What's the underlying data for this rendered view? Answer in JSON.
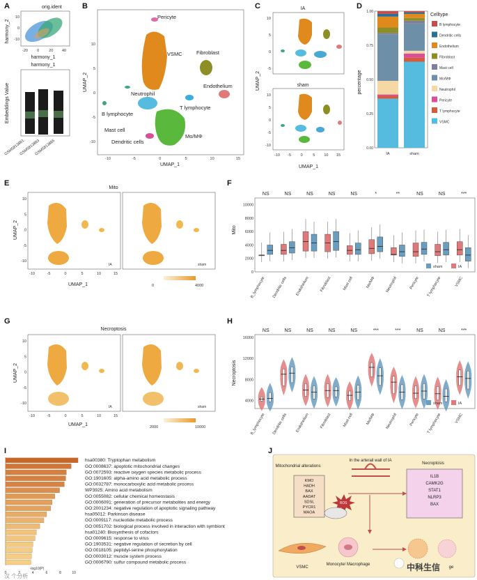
{
  "panel_labels": {
    "A": "A",
    "B": "B",
    "C": "C",
    "D": "D",
    "E": "E",
    "F": "F",
    "G": "G",
    "H": "H",
    "I": "I",
    "J": "J"
  },
  "colors": {
    "B lymphocyte": "#c0504d",
    "Dendritic cells": "#2a6f97",
    "Endothelium": "#e08a1e",
    "Fibroblast": "#8d8f26",
    "Mast cell": "#7f7f9a",
    "Mo/MΦ": "#6d90a8",
    "Neutrophil": "#f6d8a4",
    "Pericyte": "#d94f9a",
    "T lymphocyte": "#d65a3c",
    "VSMC": "#55bbdf",
    "sham": "#6a9ec0",
    "IA": "#e07a7a",
    "bar_dark": "#c8662a",
    "bar_light": "#f6cf86"
  },
  "panelA": {
    "title1": "orig.ident",
    "ylabel1": "harmony_2",
    "xlabel1": "harmony_1",
    "xticks1": [
      "-20",
      "0",
      "20",
      "40"
    ],
    "yticks1": [
      "10",
      "0",
      "-10"
    ],
    "title2": "harmony_1",
    "ylabel2": "Embeddings Value",
    "samples": [
      "GSM5813881",
      "GSM5813883",
      "GSM5813885"
    ]
  },
  "panelB": {
    "xlabel": "UMAP_1",
    "ylabel": "UMAP_2",
    "xticks": [
      "-10",
      "-5",
      "0",
      "5",
      "10",
      "15"
    ],
    "yticks": [
      "10",
      "5",
      "0",
      "-5",
      "-10"
    ],
    "labels": [
      "Pericyte",
      "VSMC",
      "Fibroblast",
      "Endothelium",
      "Neutrophil",
      "T lymphocyte",
      "B lymphocyte",
      "Mast cell",
      "Mo/MΦ",
      "Dendritic cells"
    ]
  },
  "panelC": {
    "title_top": "IA",
    "title_bottom": "sham",
    "xlabel": "UMAP_1",
    "ylabel": "UMAP_2",
    "xticks": [
      "-10",
      "-5",
      "0",
      "5",
      "10",
      "15"
    ],
    "yticks_top": [
      "10",
      "5",
      "0",
      "-5"
    ],
    "yticks_bottom": [
      "10",
      "5",
      "0",
      "-5",
      "-10"
    ]
  },
  "chart_data": [
    {
      "id": "D",
      "type": "bar",
      "stacked": true,
      "title": "",
      "xlabel": "",
      "ylabel": "percentage",
      "categories": [
        "IA",
        "sham"
      ],
      "yticks": [
        "1.00",
        "0.75",
        "0.50",
        "0.25",
        "0.00"
      ],
      "legend_title": "Celltype",
      "series": [
        {
          "name": "VSMC",
          "values": [
            0.36,
            0.63
          ]
        },
        {
          "name": "T lymphocyte",
          "values": [
            0.02,
            0.03
          ]
        },
        {
          "name": "Pericyte",
          "values": [
            0.01,
            0.03
          ]
        },
        {
          "name": "Neutrophil",
          "values": [
            0.1,
            0.02
          ]
        },
        {
          "name": "Mo/MΦ",
          "values": [
            0.34,
            0.2
          ]
        },
        {
          "name": "Mast cell",
          "values": [
            0.01,
            0.02
          ]
        },
        {
          "name": "Fibroblast",
          "values": [
            0.04,
            0.02
          ]
        },
        {
          "name": "Endothelium",
          "values": [
            0.08,
            0.03
          ]
        },
        {
          "name": "Dendritic cells",
          "values": [
            0.02,
            0.01
          ]
        },
        {
          "name": "B lymphocyte",
          "values": [
            0.02,
            0.01
          ]
        }
      ]
    },
    {
      "id": "F",
      "type": "box",
      "title": "",
      "ylabel": "Mito",
      "ylim": [
        0,
        11000
      ],
      "yticks": [
        "10000",
        "8000",
        "6000",
        "4000",
        "2000",
        "0"
      ],
      "categories": [
        "B_lymphocyte",
        "Dendritic cells",
        "Endothelium",
        "Fibroblast",
        "Mast cell",
        "Mo/MΦ",
        "Neutrophil",
        "Pericyte",
        "T lymphocyte",
        "VSMC"
      ],
      "significance": [
        "NS",
        "NS",
        "NS",
        "NS",
        "NS",
        "*",
        "**",
        "NS",
        "NS",
        "***"
      ],
      "legend": [
        "sham",
        "IA"
      ],
      "series": [
        {
          "name": "IA",
          "median": [
            2500,
            3200,
            4500,
            4300,
            3200,
            3500,
            2600,
            3000,
            3000,
            3300
          ],
          "q1": [
            2500,
            2600,
            3100,
            3000,
            2600,
            2700,
            2500,
            2300,
            2400,
            2500
          ],
          "q3": [
            2500,
            4100,
            6000,
            5600,
            3900,
            4800,
            3600,
            4300,
            4100,
            4500
          ]
        },
        {
          "name": "sham",
          "median": [
            3200,
            3600,
            4300,
            4500,
            3300,
            3800,
            3000,
            3400,
            3300,
            2500
          ],
          "q1": [
            2600,
            2800,
            3100,
            3200,
            2600,
            3000,
            2300,
            2600,
            2500,
            1600
          ],
          "q3": [
            4000,
            4500,
            5600,
            6000,
            4300,
            5200,
            4000,
            4400,
            4400,
            3600
          ]
        }
      ]
    },
    {
      "id": "H",
      "type": "violin",
      "title": "",
      "ylabel": "Necroptosis",
      "ylim": [
        2500,
        16500
      ],
      "yticks": [
        "16000",
        "12000",
        "8000",
        "4000"
      ],
      "categories": [
        "B_lymphocyte",
        "Dendritic cells",
        "Endothelium",
        "Fibroblast",
        "Mast cell",
        "Mo/MΦ",
        "Neutrophil",
        "Pericyte",
        "T lymphocyte",
        "VSMC"
      ],
      "significance": [
        "NS",
        "NS",
        "NS",
        "NS",
        "NS",
        "***",
        "***",
        "NS",
        "NS",
        "***"
      ],
      "legend": [
        "sham",
        "IA"
      ],
      "series": [
        {
          "name": "IA",
          "median": [
            4300,
            9000,
            6000,
            5900,
            5000,
            10300,
            7500,
            5400,
            5300,
            8500
          ],
          "q1": [
            3900,
            6800,
            4800,
            4600,
            4000,
            8500,
            5300,
            4400,
            4100,
            6900
          ],
          "q3": [
            4700,
            10000,
            7200,
            7200,
            5800,
            11200,
            8600,
            6800,
            6700,
            9800
          ]
        },
        {
          "name": "sham",
          "median": [
            4400,
            9200,
            5600,
            5900,
            5600,
            8700,
            5600,
            5800,
            4800,
            8200
          ],
          "q1": [
            3800,
            7400,
            4300,
            4700,
            4200,
            6900,
            4200,
            4300,
            3800,
            6200
          ],
          "q3": [
            5500,
            10400,
            6800,
            6600,
            6900,
            10200,
            7000,
            7200,
            6200,
            9600
          ]
        }
      ]
    },
    {
      "id": "I",
      "type": "bar",
      "orientation": "horizontal",
      "title": "",
      "xlabel": "-log10(P)",
      "xticks": [
        "0",
        "2",
        "4",
        "6",
        "8",
        "10"
      ],
      "categories": [
        "hsa00380: Tryptophan metabolism",
        "GO:0008637: apoptotic mitochondrial changes",
        "GO:0072593: reactive oxygen species metabolic process",
        "GO:1901605: alpha-amino acid metabolic process",
        "GO:0032787: monocarboxylic acid metabolic process",
        "WP3925: Amino acid metabolism",
        "GO:0055082: cellular chemical homeostasis",
        "GO:0006091: generation of precursor metabolites and energy",
        "GO:2001234: negative regulation of apoptotic signaling pathway",
        "hsa05012: Parkinson disease",
        "GO:0009117: nucleotide metabolic process",
        "GO:0051702: biological process involved in interaction with symbiont",
        "hsa01240: Biosynthesis of cofactors",
        "GO:0009615: response to virus",
        "GO:1903531: negative regulation of secretion by cell",
        "GO:0018105: peptidyl-serine phosphorylation",
        "GO:0003012: muscle system process",
        "GO:0006790: sulfur compound metabolic process"
      ],
      "values": [
        10.6,
        9.6,
        8.9,
        8.8,
        8.6,
        7.9,
        7.2,
        6.8,
        6.6,
        6.0,
        5.6,
        5.0,
        4.5,
        4.3,
        4.0,
        3.9,
        3.8,
        3.7
      ]
    }
  ],
  "panelE": {
    "title": "Mito",
    "xlabel": "UMAP_1",
    "ylabel": "UMAP_2",
    "left": "IA",
    "right": "sham",
    "scale_min": "0",
    "scale_max": "4000",
    "xticks": [
      "-10",
      "-5",
      "0",
      "5",
      "10",
      "15"
    ],
    "yticks": [
      "10",
      "5",
      "0",
      "-5",
      "-10"
    ]
  },
  "panelG": {
    "title": "Necroptosis",
    "xlabel": "UMAP_1",
    "ylabel": "UMAP_2",
    "left": "IA",
    "right": "sham",
    "scale_min": "2000",
    "scale_max": "10000",
    "xticks": [
      "-10",
      "-5",
      "0",
      "5",
      "10",
      "15"
    ],
    "yticks": [
      "10",
      "5",
      "0",
      "-5",
      "-10"
    ]
  },
  "panelJ": {
    "mito_title": "Mitochondrial alterations",
    "mito_genes": [
      "KMO",
      "HADH",
      "BAX",
      "AADAT",
      "SDSL",
      "PYCR1",
      "MAOA"
    ],
    "wall_title": "In the arterail wall of IA",
    "necro_title": "Necroptosis",
    "necro_genes": [
      "IL1B",
      "CAMK2G",
      "STAT1",
      "NLRP3",
      "BAX"
    ],
    "ros": "ROS",
    "vsmc": "VSMC",
    "macro": "Monocyte/ Macrophage",
    "partial1": "MI",
    "partial2": "ge"
  },
  "watermark": {
    "main": "中科生信",
    "corner": "汉 个分析"
  }
}
